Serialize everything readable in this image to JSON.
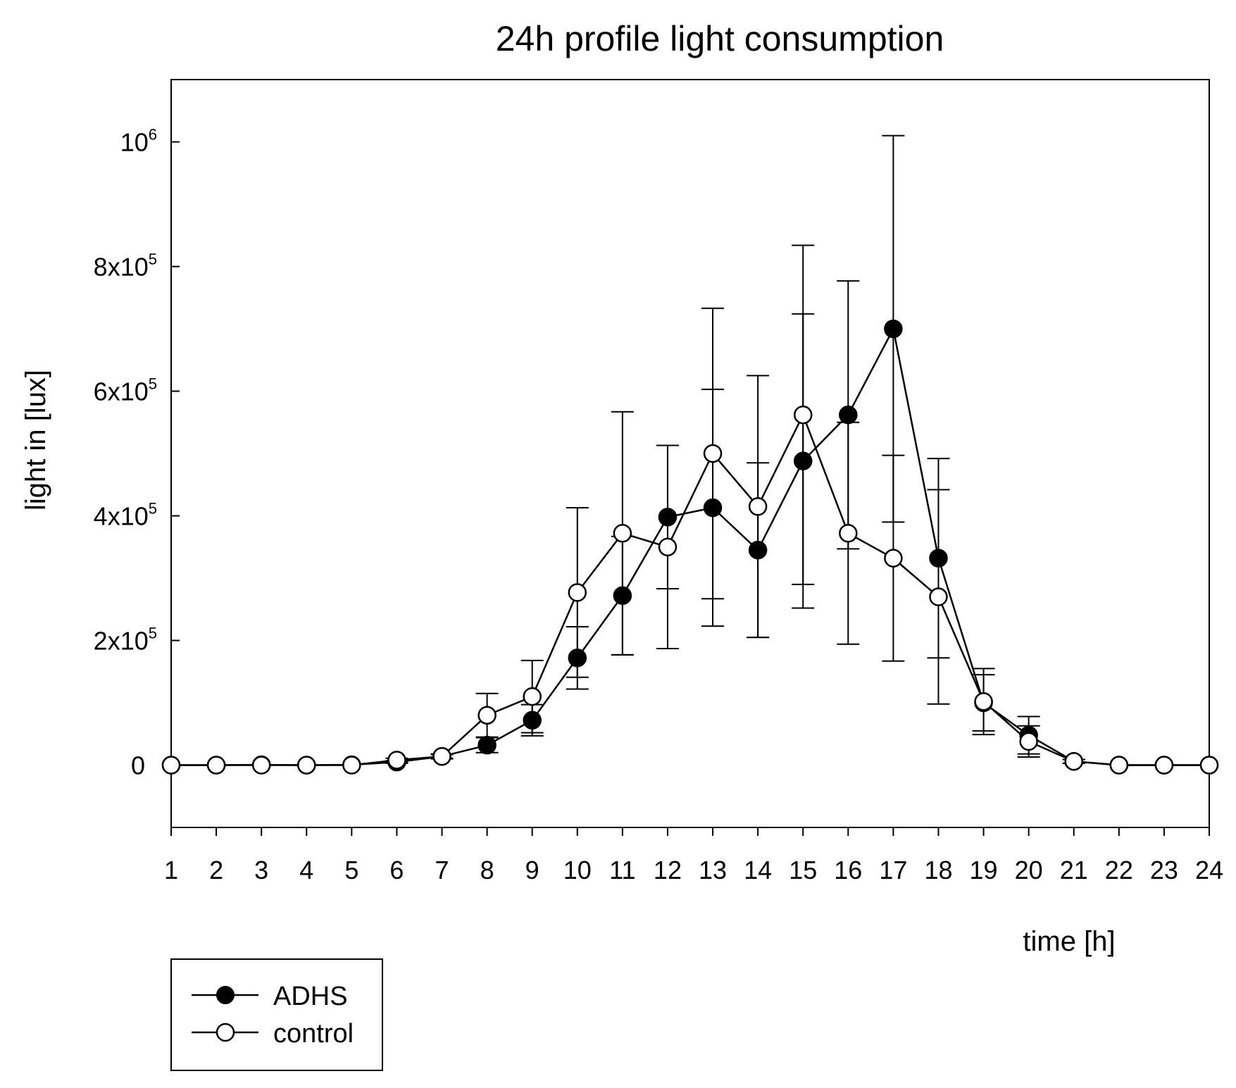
{
  "chart_data": {
    "type": "line",
    "title": "24h profile light consumption",
    "xlabel": "time [h]",
    "ylabel": "light in [lux]",
    "x": [
      1,
      2,
      3,
      4,
      5,
      6,
      7,
      8,
      9,
      10,
      11,
      12,
      13,
      14,
      15,
      16,
      17,
      18,
      19,
      20,
      21,
      22,
      23,
      24
    ],
    "xlim": [
      1,
      24
    ],
    "ylim": [
      -100000,
      1100000
    ],
    "y_ticks": [
      {
        "value": 0,
        "mantissa": "0",
        "exponent": ""
      },
      {
        "value": 200000,
        "mantissa": "2x10",
        "exponent": "5"
      },
      {
        "value": 400000,
        "mantissa": "4x10",
        "exponent": "5"
      },
      {
        "value": 600000,
        "mantissa": "6x10",
        "exponent": "5"
      },
      {
        "value": 800000,
        "mantissa": "8x10",
        "exponent": "5"
      },
      {
        "value": 1000000,
        "mantissa": "10",
        "exponent": "6"
      }
    ],
    "grid": false,
    "legend_position": "bottom-left",
    "series": [
      {
        "name": "ADHS",
        "marker": "filled-circle",
        "values": [
          0,
          0,
          500,
          0,
          500,
          5000,
          14000,
          32000,
          72000,
          172000,
          272000,
          398000,
          413000,
          345000,
          488000,
          562000,
          700000,
          332000,
          100000,
          48000,
          6000,
          0,
          0,
          0
        ],
        "error": [
          0,
          0,
          0,
          0,
          0,
          2000,
          3000,
          12000,
          25000,
          50000,
          95000,
          115000,
          190000,
          140000,
          236000,
          215000,
          310000,
          160000,
          45000,
          30000,
          3000,
          0,
          0,
          0
        ]
      },
      {
        "name": "control",
        "marker": "open-circle",
        "values": [
          0,
          0,
          0,
          0,
          0,
          8000,
          14000,
          80000,
          110000,
          277000,
          372000,
          350000,
          500000,
          415000,
          562000,
          372000,
          332000,
          270000,
          102000,
          38000,
          6000,
          0,
          0,
          0
        ],
        "error": [
          0,
          0,
          0,
          0,
          0,
          3000,
          4000,
          35000,
          58000,
          136000,
          195000,
          163000,
          233000,
          210000,
          272000,
          178000,
          165000,
          172000,
          53000,
          25000,
          3000,
          0,
          0,
          0
        ]
      }
    ]
  }
}
